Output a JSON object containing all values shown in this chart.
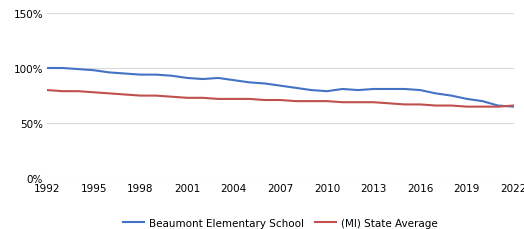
{
  "beaumont_x": [
    1992,
    1993,
    1994,
    1995,
    1996,
    1997,
    1998,
    1999,
    2000,
    2001,
    2002,
    2003,
    2004,
    2005,
    2006,
    2007,
    2008,
    2009,
    2010,
    2011,
    2012,
    2013,
    2014,
    2015,
    2016,
    2017,
    2018,
    2019,
    2020,
    2021,
    2022
  ],
  "beaumont_y": [
    1.0,
    1.0,
    0.99,
    0.98,
    0.96,
    0.95,
    0.94,
    0.94,
    0.93,
    0.91,
    0.9,
    0.91,
    0.89,
    0.87,
    0.86,
    0.84,
    0.82,
    0.8,
    0.79,
    0.81,
    0.8,
    0.81,
    0.81,
    0.81,
    0.8,
    0.77,
    0.75,
    0.72,
    0.7,
    0.66,
    0.65
  ],
  "state_x": [
    1992,
    1993,
    1994,
    1995,
    1996,
    1997,
    1998,
    1999,
    2000,
    2001,
    2002,
    2003,
    2004,
    2005,
    2006,
    2007,
    2008,
    2009,
    2010,
    2011,
    2012,
    2013,
    2014,
    2015,
    2016,
    2017,
    2018,
    2019,
    2020,
    2021,
    2022
  ],
  "state_y": [
    0.8,
    0.79,
    0.79,
    0.78,
    0.77,
    0.76,
    0.75,
    0.75,
    0.74,
    0.73,
    0.73,
    0.72,
    0.72,
    0.72,
    0.71,
    0.71,
    0.7,
    0.7,
    0.7,
    0.69,
    0.69,
    0.69,
    0.68,
    0.67,
    0.67,
    0.66,
    0.66,
    0.65,
    0.65,
    0.65,
    0.66
  ],
  "beaumont_color": "#4472c4",
  "state_color": "#c0504d",
  "beaumont_label": "Beaumont Elementary School",
  "state_label": "(MI) State Average",
  "xlim": [
    1992,
    2022
  ],
  "ylim": [
    0.0,
    1.5
  ],
  "yticks": [
    0.0,
    0.5,
    1.0,
    1.5
  ],
  "ytick_labels": [
    "0%",
    "50%",
    "100%",
    "150%"
  ],
  "xticks": [
    1992,
    1995,
    1998,
    2001,
    2004,
    2007,
    2010,
    2013,
    2016,
    2019,
    2022
  ],
  "grid_color": "#d9d9d9",
  "background_color": "#ffffff",
  "line_width": 1.5,
  "tick_fontsize": 7.5,
  "legend_fontsize": 7.5
}
